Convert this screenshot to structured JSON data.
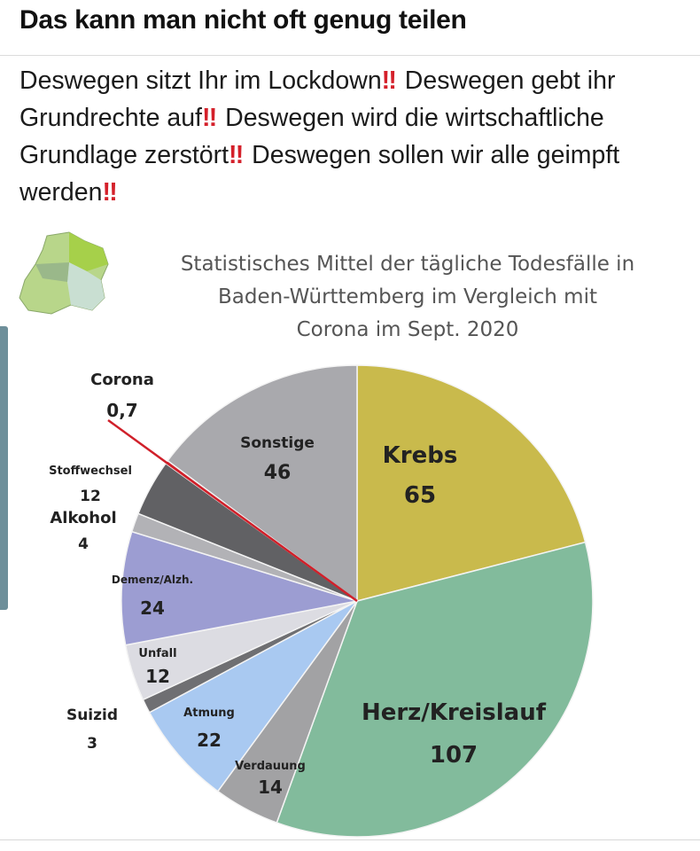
{
  "post": {
    "title": "Das kann man nicht oft genug teilen",
    "text_segments": [
      {
        "text": "Deswegen sitzt Ihr im Lockdown",
        "emoji": "‼"
      },
      {
        "text": " Deswegen gebt ihr Grundrechte auf",
        "emoji": "‼"
      },
      {
        "text": "  Deswegen wird die wirtschaftliche Grundlage zerstört",
        "emoji": "‼"
      },
      {
        "text": " Deswegen sollen wir alle geimpft werden",
        "emoji": "‼"
      }
    ]
  },
  "chart_data": {
    "type": "pie",
    "title": "Statistisches Mittel der tägliche Todesfälle in Baden-Württemberg im Vergleich mit Corona im Sept. 2020",
    "title_lines": [
      "Statistisches Mittel der tägliche Todesfälle in",
      "Baden-Württemberg im Vergleich mit",
      "Corona im Sept. 2020"
    ],
    "start": "top",
    "direction": "clockwise",
    "slices": [
      {
        "label": "Krebs",
        "value": 65,
        "value_text": "65",
        "color": "#c9ba4c"
      },
      {
        "label": "Herz/Kreislauf",
        "value": 107,
        "value_text": "107",
        "color": "#82bb9c"
      },
      {
        "label": "Verdauung",
        "value": 14,
        "value_text": "14",
        "color": "#a2a2a4"
      },
      {
        "label": "Atmung",
        "value": 22,
        "value_text": "22",
        "color": "#a9c9f1"
      },
      {
        "label": "Suizid",
        "value": 3,
        "value_text": "3",
        "color": "#6f6f72"
      },
      {
        "label": "Unfall",
        "value": 12,
        "value_text": "12",
        "color": "#dcdce2"
      },
      {
        "label": "Demenz/Alzh.",
        "value": 24,
        "value_text": "24",
        "color": "#9c9dd2"
      },
      {
        "label": "Alkohol",
        "value": 4,
        "value_text": "4",
        "color": "#b2b2b6"
      },
      {
        "label": "Stoffwechsel",
        "value": 12,
        "value_text": "12",
        "color": "#616164"
      },
      {
        "label": "Corona",
        "value": 0.7,
        "value_text": "0,7",
        "color": "#d0202a"
      },
      {
        "label": "Sonstige",
        "value": 46,
        "value_text": "46",
        "color": "#a9a9ad"
      }
    ]
  }
}
